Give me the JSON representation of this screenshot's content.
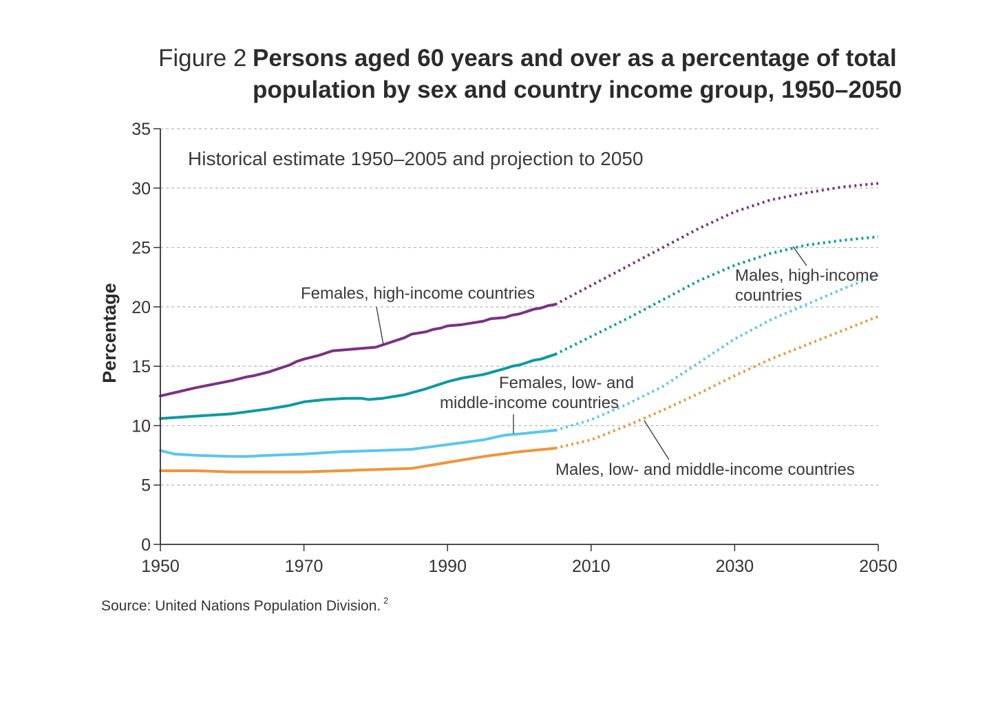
{
  "figure": {
    "label": "Figure 2",
    "title_line1": "Persons aged 60 years and over as a percentage of total",
    "title_line2": "population by sex and country income group, 1950–2050"
  },
  "source": {
    "text": "Source: United Nations Population Division.",
    "superscript": "2"
  },
  "chart_data": {
    "type": "line",
    "subtitle": "Historical estimate 1950–2005 and projection to 2050",
    "ylabel": "Percentage",
    "xlabel": "",
    "xlim": [
      1950,
      2050
    ],
    "ylim": [
      0,
      35
    ],
    "x_ticks": [
      1950,
      1970,
      1990,
      2010,
      2030,
      2050
    ],
    "y_ticks": [
      0,
      5,
      10,
      15,
      20,
      25,
      30,
      35
    ],
    "grid": "horizontal dotted",
    "historical_range": [
      1950,
      2005
    ],
    "projection_range": [
      2005,
      2050
    ],
    "series": [
      {
        "name": "Females, high-income countries",
        "color": "#7b3283",
        "x": [
          1950,
          1955,
          1960,
          1962,
          1963,
          1965,
          1968,
          1969,
          1970,
          1972,
          1974,
          1976,
          1978,
          1980,
          1982,
          1984,
          1985,
          1986,
          1987,
          1988,
          1989,
          1990,
          1992,
          1994,
          1995,
          1996,
          1998,
          1999,
          2000,
          2001,
          2002,
          2003,
          2004,
          2005,
          2010,
          2015,
          2020,
          2025,
          2030,
          2035,
          2040,
          2045,
          2050
        ],
        "y": [
          12.5,
          13.2,
          13.8,
          14.1,
          14.2,
          14.5,
          15.1,
          15.4,
          15.6,
          15.9,
          16.3,
          16.4,
          16.5,
          16.6,
          17.0,
          17.4,
          17.7,
          17.8,
          17.9,
          18.1,
          18.2,
          18.4,
          18.5,
          18.7,
          18.8,
          19.0,
          19.1,
          19.3,
          19.4,
          19.6,
          19.8,
          19.9,
          20.1,
          20.2,
          21.8,
          23.4,
          25.0,
          26.6,
          28.0,
          29.0,
          29.6,
          30.1,
          30.4
        ]
      },
      {
        "name": "Males, high-income countries",
        "color": "#0c9aa1",
        "x": [
          1950,
          1955,
          1960,
          1965,
          1968,
          1970,
          1973,
          1976,
          1978,
          1979,
          1981,
          1984,
          1987,
          1990,
          1992,
          1995,
          1998,
          1999,
          2000,
          2001,
          2002,
          2003,
          2004,
          2005,
          2010,
          2015,
          2020,
          2025,
          2030,
          2035,
          2040,
          2045,
          2050
        ],
        "y": [
          10.6,
          10.8,
          11.0,
          11.4,
          11.7,
          12.0,
          12.2,
          12.3,
          12.3,
          12.2,
          12.3,
          12.6,
          13.1,
          13.7,
          14.0,
          14.3,
          14.8,
          15.0,
          15.1,
          15.3,
          15.5,
          15.6,
          15.8,
          16.0,
          17.5,
          19.0,
          20.6,
          22.2,
          23.5,
          24.5,
          25.2,
          25.6,
          25.9
        ]
      },
      {
        "name": "Females, low- and middle-income countries",
        "color": "#5bc6ee",
        "x": [
          1950,
          1952,
          1955,
          1960,
          1962,
          1965,
          1970,
          1975,
          1980,
          1985,
          1990,
          1995,
          1998,
          2000,
          2005,
          2010,
          2015,
          2020,
          2025,
          2030,
          2035,
          2040,
          2045,
          2050
        ],
        "y": [
          7.9,
          7.6,
          7.5,
          7.4,
          7.4,
          7.5,
          7.6,
          7.8,
          7.9,
          8.0,
          8.4,
          8.8,
          9.2,
          9.3,
          9.6,
          10.5,
          11.8,
          13.3,
          15.3,
          17.3,
          18.9,
          20.2,
          21.5,
          22.7
        ]
      },
      {
        "name": "Males, low- and middle-income countries",
        "color": "#f0953a",
        "x": [
          1950,
          1955,
          1960,
          1965,
          1970,
          1975,
          1980,
          1985,
          1990,
          1995,
          2000,
          2005,
          2010,
          2015,
          2020,
          2025,
          2030,
          2035,
          2040,
          2045,
          2050
        ],
        "y": [
          6.2,
          6.2,
          6.1,
          6.1,
          6.1,
          6.2,
          6.3,
          6.4,
          6.9,
          7.4,
          7.8,
          8.1,
          8.8,
          10.0,
          11.3,
          12.7,
          14.2,
          15.6,
          16.8,
          18.0,
          19.2
        ]
      }
    ]
  },
  "labels": {
    "females_high": "Females, high-income countries",
    "males_high_line1": "Males, high-income",
    "males_high_line2": "countries",
    "females_low_line1": "Females, low- and",
    "females_low_line2": "middle-income countries",
    "males_low": "Males, low- and middle-income countries"
  }
}
